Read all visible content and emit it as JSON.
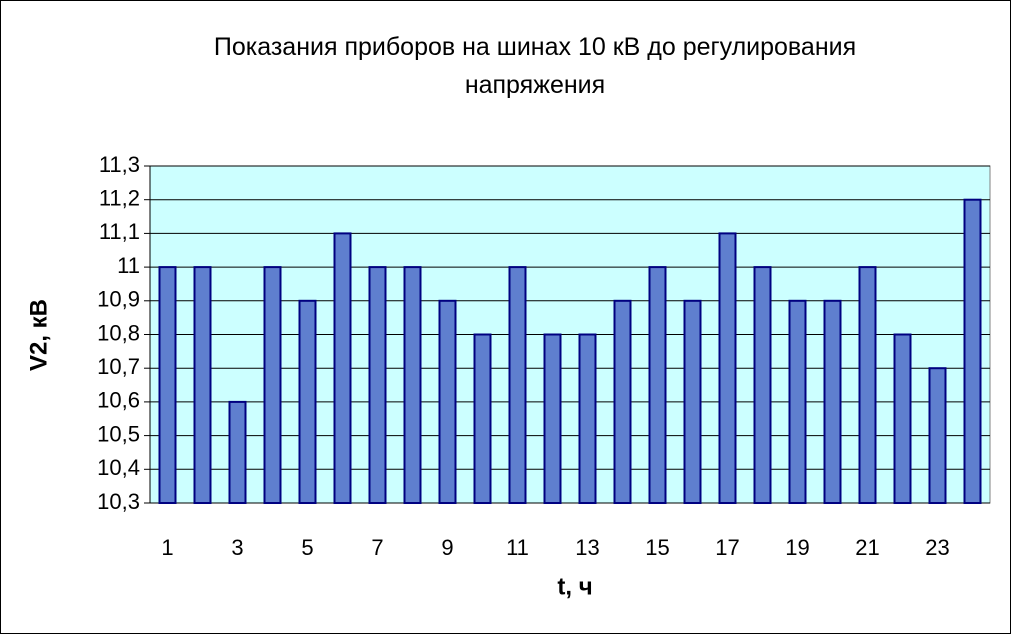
{
  "chart_data": {
    "type": "bar",
    "title": "Показания приборов на шинах 10 кВ до регулирования напряжения",
    "x_label": "t, ч",
    "y_label": "V2, кВ",
    "categories": [
      "1",
      null,
      "3",
      null,
      "5",
      null,
      "7",
      null,
      "9",
      null,
      "11",
      null,
      "13",
      null,
      "15",
      null,
      "17",
      null,
      "19",
      null,
      "21",
      null,
      "23",
      null
    ],
    "values": [
      11.0,
      11.0,
      10.6,
      11.0,
      10.9,
      11.1,
      11.0,
      11.0,
      10.9,
      10.8,
      11.0,
      10.8,
      10.8,
      10.9,
      11.0,
      10.9,
      11.1,
      11.0,
      10.9,
      10.9,
      11.0,
      10.8,
      10.7,
      11.2
    ],
    "color": "#5f7fcf",
    "plot_background": "#ccffff",
    "grid": true,
    "ylim": [
      10.3,
      11.3
    ],
    "yticks": [
      {
        "value": 10.3,
        "label": "10,3"
      },
      {
        "value": 10.4,
        "label": "10,4"
      },
      {
        "value": 10.5,
        "label": "10,5"
      },
      {
        "value": 10.6,
        "label": "10,6"
      },
      {
        "value": 10.7,
        "label": "10,7"
      },
      {
        "value": 10.8,
        "label": "10,8"
      },
      {
        "value": 10.9,
        "label": "10,9"
      },
      11,
      {
        "value": 11.1,
        "label": "11,1"
      },
      {
        "value": 11.2,
        "label": "11,2"
      },
      {
        "value": 11.3,
        "label": "11,3"
      }
    ]
  }
}
